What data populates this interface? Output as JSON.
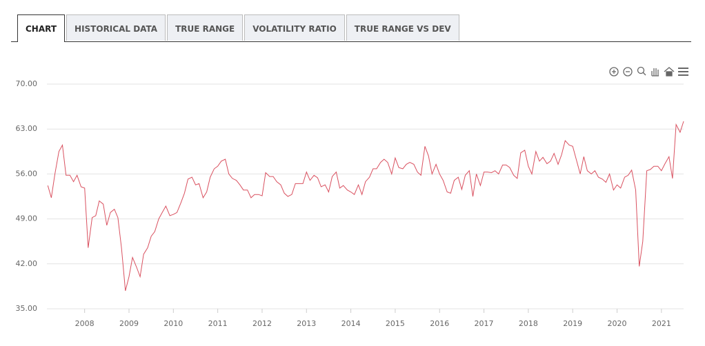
{
  "tabs": [
    "CHART",
    "HISTORICAL DATA",
    "TRUE RANGE",
    "VOLATILITY RATIO",
    "TRUE RANGE VS DEV"
  ],
  "chart_data": {
    "type": "line",
    "series": [
      {
        "color": "#d9505f",
        "values": [
          54.2,
          52.3,
          56,
          59.5,
          60.5,
          55.8,
          55.8,
          54.8,
          55.8,
          54,
          53.8,
          44.5,
          49.2,
          49.5,
          51.8,
          51.3,
          48,
          50,
          50.5,
          49.2,
          44.5,
          37.8,
          40,
          43,
          41.5,
          40,
          43.5,
          44.5,
          46.3,
          47,
          49,
          50,
          51,
          49.5,
          49.7,
          50,
          51.5,
          53,
          55.2,
          55.5,
          54.3,
          54.5,
          52.3,
          53.2,
          55.5,
          56.8,
          57.2,
          58,
          58.3,
          56,
          55.3,
          55,
          54.3,
          53.5,
          53.5,
          52.3,
          52.8,
          52.8,
          52.6,
          56.2,
          55.6,
          55.6,
          54.8,
          54.3,
          53,
          52.5,
          52.8,
          54.5,
          54.5,
          54.5,
          56.3,
          55,
          55.8,
          55.4,
          54,
          54.3,
          53.2,
          55.6,
          56.3,
          53.8,
          54.2,
          53.5,
          53.2,
          52.8,
          54.3,
          52.8,
          54.8,
          55.5,
          56.8,
          56.8,
          57.8,
          58.3,
          57.8,
          56,
          58.5,
          57,
          56.8,
          57.5,
          57.8,
          57.5,
          56.3,
          55.8,
          60.3,
          58.8,
          56,
          57.5,
          56,
          55,
          53.2,
          53,
          55,
          55.5,
          53.6,
          55.8,
          56.5,
          52.5,
          56,
          54.2,
          56.3,
          56.3,
          56.2,
          56.5,
          56,
          57.4,
          57.4,
          57,
          55.8,
          55.3,
          59.3,
          59.7,
          57.2,
          56,
          59.5,
          58,
          58.6,
          57.6,
          58,
          59.2,
          57.5,
          59,
          61.2,
          60.5,
          60.3,
          58.3,
          56,
          58.7,
          56.5,
          56,
          56.5,
          55.5,
          55.2,
          54.7,
          56,
          53.5,
          54.3,
          53.8,
          55.5,
          55.8,
          56.6,
          53.5,
          41.6,
          45.5,
          56.5,
          56.7,
          57.2,
          57.2,
          56.5,
          57.6,
          58.7,
          55.3,
          63.7,
          62.5,
          64.2
        ]
      }
    ],
    "x": [
      2007.17,
      2007.25,
      2007.33,
      2007.42,
      2007.5,
      2007.58,
      2007.67,
      2007.75,
      2007.83,
      2007.92,
      2008,
      2008.08,
      2008.17,
      2008.25,
      2008.33,
      2008.42,
      2008.5,
      2008.58,
      2008.67,
      2008.75,
      2008.83,
      2008.92,
      2009,
      2009.08,
      2009.17,
      2009.25,
      2009.33,
      2009.42,
      2009.5,
      2009.58,
      2009.67,
      2009.75,
      2009.83,
      2009.92,
      2010,
      2010.08,
      2010.17,
      2010.25,
      2010.33,
      2010.42,
      2010.5,
      2010.58,
      2010.67,
      2010.75,
      2010.83,
      2010.92,
      2011,
      2011.08,
      2011.17,
      2011.25,
      2011.33,
      2011.42,
      2011.5,
      2011.58,
      2011.67,
      2011.75,
      2011.83,
      2011.92,
      2012,
      2012.08,
      2012.17,
      2012.25,
      2012.33,
      2012.42,
      2012.5,
      2012.58,
      2012.67,
      2012.75,
      2012.83,
      2012.92,
      2013,
      2013.08,
      2013.17,
      2013.25,
      2013.33,
      2013.42,
      2013.5,
      2013.58,
      2013.67,
      2013.75,
      2013.83,
      2013.92,
      2014,
      2014.08,
      2014.17,
      2014.25,
      2014.33,
      2014.42,
      2014.5,
      2014.58,
      2014.67,
      2014.75,
      2014.83,
      2014.92,
      2015,
      2015.08,
      2015.17,
      2015.25,
      2015.33,
      2015.42,
      2015.5,
      2015.58,
      2015.67,
      2015.75,
      2015.83,
      2015.92,
      2016,
      2016.08,
      2016.17,
      2016.25,
      2016.33,
      2016.42,
      2016.5,
      2016.58,
      2016.67,
      2016.75,
      2016.83,
      2016.92,
      2017,
      2017.08,
      2017.17,
      2017.25,
      2017.33,
      2017.42,
      2017.5,
      2017.58,
      2017.67,
      2017.75,
      2017.83,
      2017.92,
      2018,
      2018.08,
      2018.17,
      2018.25,
      2018.33,
      2018.42,
      2018.5,
      2018.58,
      2018.67,
      2018.75,
      2018.83,
      2018.92,
      2019,
      2019.08,
      2019.17,
      2019.25,
      2019.33,
      2019.42,
      2019.5,
      2019.58,
      2019.67,
      2019.75,
      2019.83,
      2019.92,
      2020,
      2020.08,
      2020.17,
      2020.25,
      2020.33,
      2020.42,
      2020.5,
      2020.58,
      2020.67,
      2020.75,
      2020.83,
      2020.92,
      2021,
      2021.08,
      2021.17,
      2021.25,
      2021.33,
      2021.42,
      2021.5
    ],
    "xlim": [
      2007.15,
      2021.5
    ],
    "xticks": [
      2008,
      2009,
      2010,
      2011,
      2012,
      2013,
      2014,
      2015,
      2016,
      2017,
      2018,
      2019,
      2020,
      2021
    ],
    "ylim": [
      35,
      70
    ],
    "yticks": [
      {
        "value": 35,
        "label": "35.00"
      },
      {
        "value": 42,
        "label": "42.00"
      },
      {
        "value": 49,
        "label": "49.00"
      },
      {
        "value": 56,
        "label": "56.00"
      },
      {
        "value": 63,
        "label": "63.00"
      },
      {
        "value": 70,
        "label": "70.00"
      }
    ],
    "grid": true
  }
}
